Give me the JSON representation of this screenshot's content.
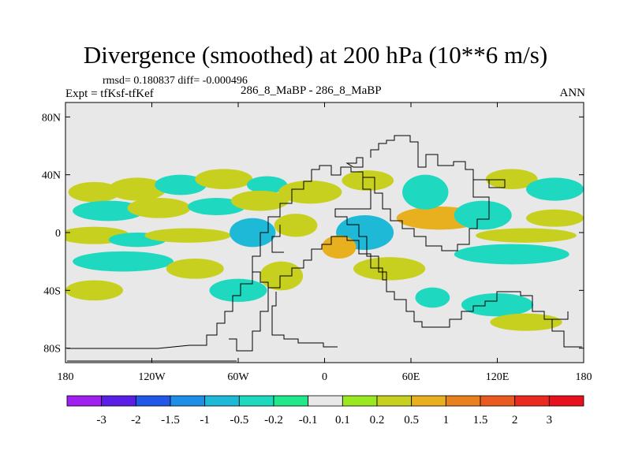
{
  "chart_data": {
    "type": "heatmap",
    "title": "Divergence (smoothed) at 200 hPa (10**6 m/s)",
    "stats_text": "rmsd= 0.180837  diff= -0.000496",
    "stats": {
      "rmsd": 0.180837,
      "diff": -0.000496
    },
    "experiment_label": "Expt = tfKsf-tfKef",
    "case_label": "286_8_MaBP - 286_8_MaBP",
    "season_label": "ANN",
    "xlim": [
      -180,
      180
    ],
    "ylim": [
      -90,
      90
    ],
    "x_ticks": [
      {
        "value": -180,
        "label": "180"
      },
      {
        "value": -120,
        "label": "120W"
      },
      {
        "value": -60,
        "label": "60W"
      },
      {
        "value": 0,
        "label": "0"
      },
      {
        "value": 60,
        "label": "60E"
      },
      {
        "value": 120,
        "label": "120E"
      },
      {
        "value": 180,
        "label": "180"
      }
    ],
    "y_ticks": [
      {
        "value": 80,
        "label": "80N"
      },
      {
        "value": 40,
        "label": "40N"
      },
      {
        "value": 0,
        "label": "0"
      },
      {
        "value": -40,
        "label": "40S"
      },
      {
        "value": -80,
        "label": "80S"
      }
    ],
    "colorbar": {
      "labels": [
        "-3",
        "-2",
        "-1.5",
        "-1",
        "-0.5",
        "-0.2",
        "-0.1",
        "0.1",
        "0.2",
        "0.5",
        "1",
        "1.5",
        "2",
        "3"
      ],
      "colors": [
        "#a020f0",
        "#5a1fe6",
        "#1f57e6",
        "#1f8ee6",
        "#1fb9d8",
        "#1fd8c0",
        "#22e88c",
        "#e8e8e8",
        "#9ae81f",
        "#c8d01f",
        "#e8b01f",
        "#e8801f",
        "#e85a1f",
        "#e82a1f",
        "#e8101f"
      ]
    },
    "background_color": "#e8e8e8",
    "contour_blobs": [
      {
        "lon": -160,
        "lat": 28,
        "rx": 18,
        "ry": 7,
        "value": 0.3
      },
      {
        "lon": -130,
        "lat": 30,
        "rx": 20,
        "ry": 8,
        "value": 0.3
      },
      {
        "lon": -100,
        "lat": 33,
        "rx": 18,
        "ry": 7,
        "value": -0.3
      },
      {
        "lon": -70,
        "lat": 37,
        "rx": 20,
        "ry": 7,
        "value": 0.3
      },
      {
        "lon": -40,
        "lat": 33,
        "rx": 14,
        "ry": 6,
        "value": -0.3
      },
      {
        "lon": -150,
        "lat": 15,
        "rx": 25,
        "ry": 7,
        "value": -0.3
      },
      {
        "lon": -115,
        "lat": 17,
        "rx": 22,
        "ry": 7,
        "value": 0.3
      },
      {
        "lon": -75,
        "lat": 18,
        "rx": 20,
        "ry": 6,
        "value": -0.3
      },
      {
        "lon": -45,
        "lat": 22,
        "rx": 20,
        "ry": 7,
        "value": 0.3
      },
      {
        "lon": -10,
        "lat": 28,
        "rx": 22,
        "ry": 8,
        "value": 0.3
      },
      {
        "lon": 30,
        "lat": 36,
        "rx": 18,
        "ry": 7,
        "value": 0.3
      },
      {
        "lon": -160,
        "lat": -2,
        "rx": 25,
        "ry": 6,
        "value": 0.3
      },
      {
        "lon": -130,
        "lat": -5,
        "rx": 20,
        "ry": 5,
        "value": -0.3
      },
      {
        "lon": -95,
        "lat": -2,
        "rx": 30,
        "ry": 5,
        "value": 0.3
      },
      {
        "lon": -50,
        "lat": 0,
        "rx": 16,
        "ry": 10,
        "value": -0.6
      },
      {
        "lon": -20,
        "lat": 5,
        "rx": 15,
        "ry": 8,
        "value": 0.3
      },
      {
        "lon": 28,
        "lat": 0,
        "rx": 20,
        "ry": 12,
        "value": -0.8
      },
      {
        "lon": 10,
        "lat": -10,
        "rx": 12,
        "ry": 8,
        "value": 0.5
      },
      {
        "lon": 80,
        "lat": 10,
        "rx": 30,
        "ry": 8,
        "value": 0.5
      },
      {
        "lon": 70,
        "lat": 28,
        "rx": 16,
        "ry": 12,
        "value": -0.3
      },
      {
        "lon": 110,
        "lat": 12,
        "rx": 20,
        "ry": 10,
        "value": -0.3
      },
      {
        "lon": 130,
        "lat": 37,
        "rx": 18,
        "ry": 7,
        "value": 0.3
      },
      {
        "lon": 160,
        "lat": 30,
        "rx": 20,
        "ry": 8,
        "value": -0.3
      },
      {
        "lon": 160,
        "lat": 10,
        "rx": 20,
        "ry": 6,
        "value": 0.3
      },
      {
        "lon": 140,
        "lat": -2,
        "rx": 35,
        "ry": 5,
        "value": 0.3
      },
      {
        "lon": 130,
        "lat": -15,
        "rx": 40,
        "ry": 7,
        "value": -0.3
      },
      {
        "lon": -140,
        "lat": -20,
        "rx": 35,
        "ry": 7,
        "value": -0.3
      },
      {
        "lon": -90,
        "lat": -25,
        "rx": 20,
        "ry": 7,
        "value": 0.3
      },
      {
        "lon": -160,
        "lat": -40,
        "rx": 20,
        "ry": 7,
        "value": 0.2
      },
      {
        "lon": -60,
        "lat": -40,
        "rx": 20,
        "ry": 8,
        "value": -0.3
      },
      {
        "lon": -30,
        "lat": -30,
        "rx": 15,
        "ry": 10,
        "value": 0.3
      },
      {
        "lon": 45,
        "lat": -25,
        "rx": 25,
        "ry": 8,
        "value": 0.3
      },
      {
        "lon": 75,
        "lat": -45,
        "rx": 12,
        "ry": 7,
        "value": -0.3
      },
      {
        "lon": 120,
        "lat": -50,
        "rx": 25,
        "ry": 8,
        "value": -0.3
      },
      {
        "lon": 140,
        "lat": -62,
        "rx": 25,
        "ry": 6,
        "value": 0.3
      }
    ]
  }
}
